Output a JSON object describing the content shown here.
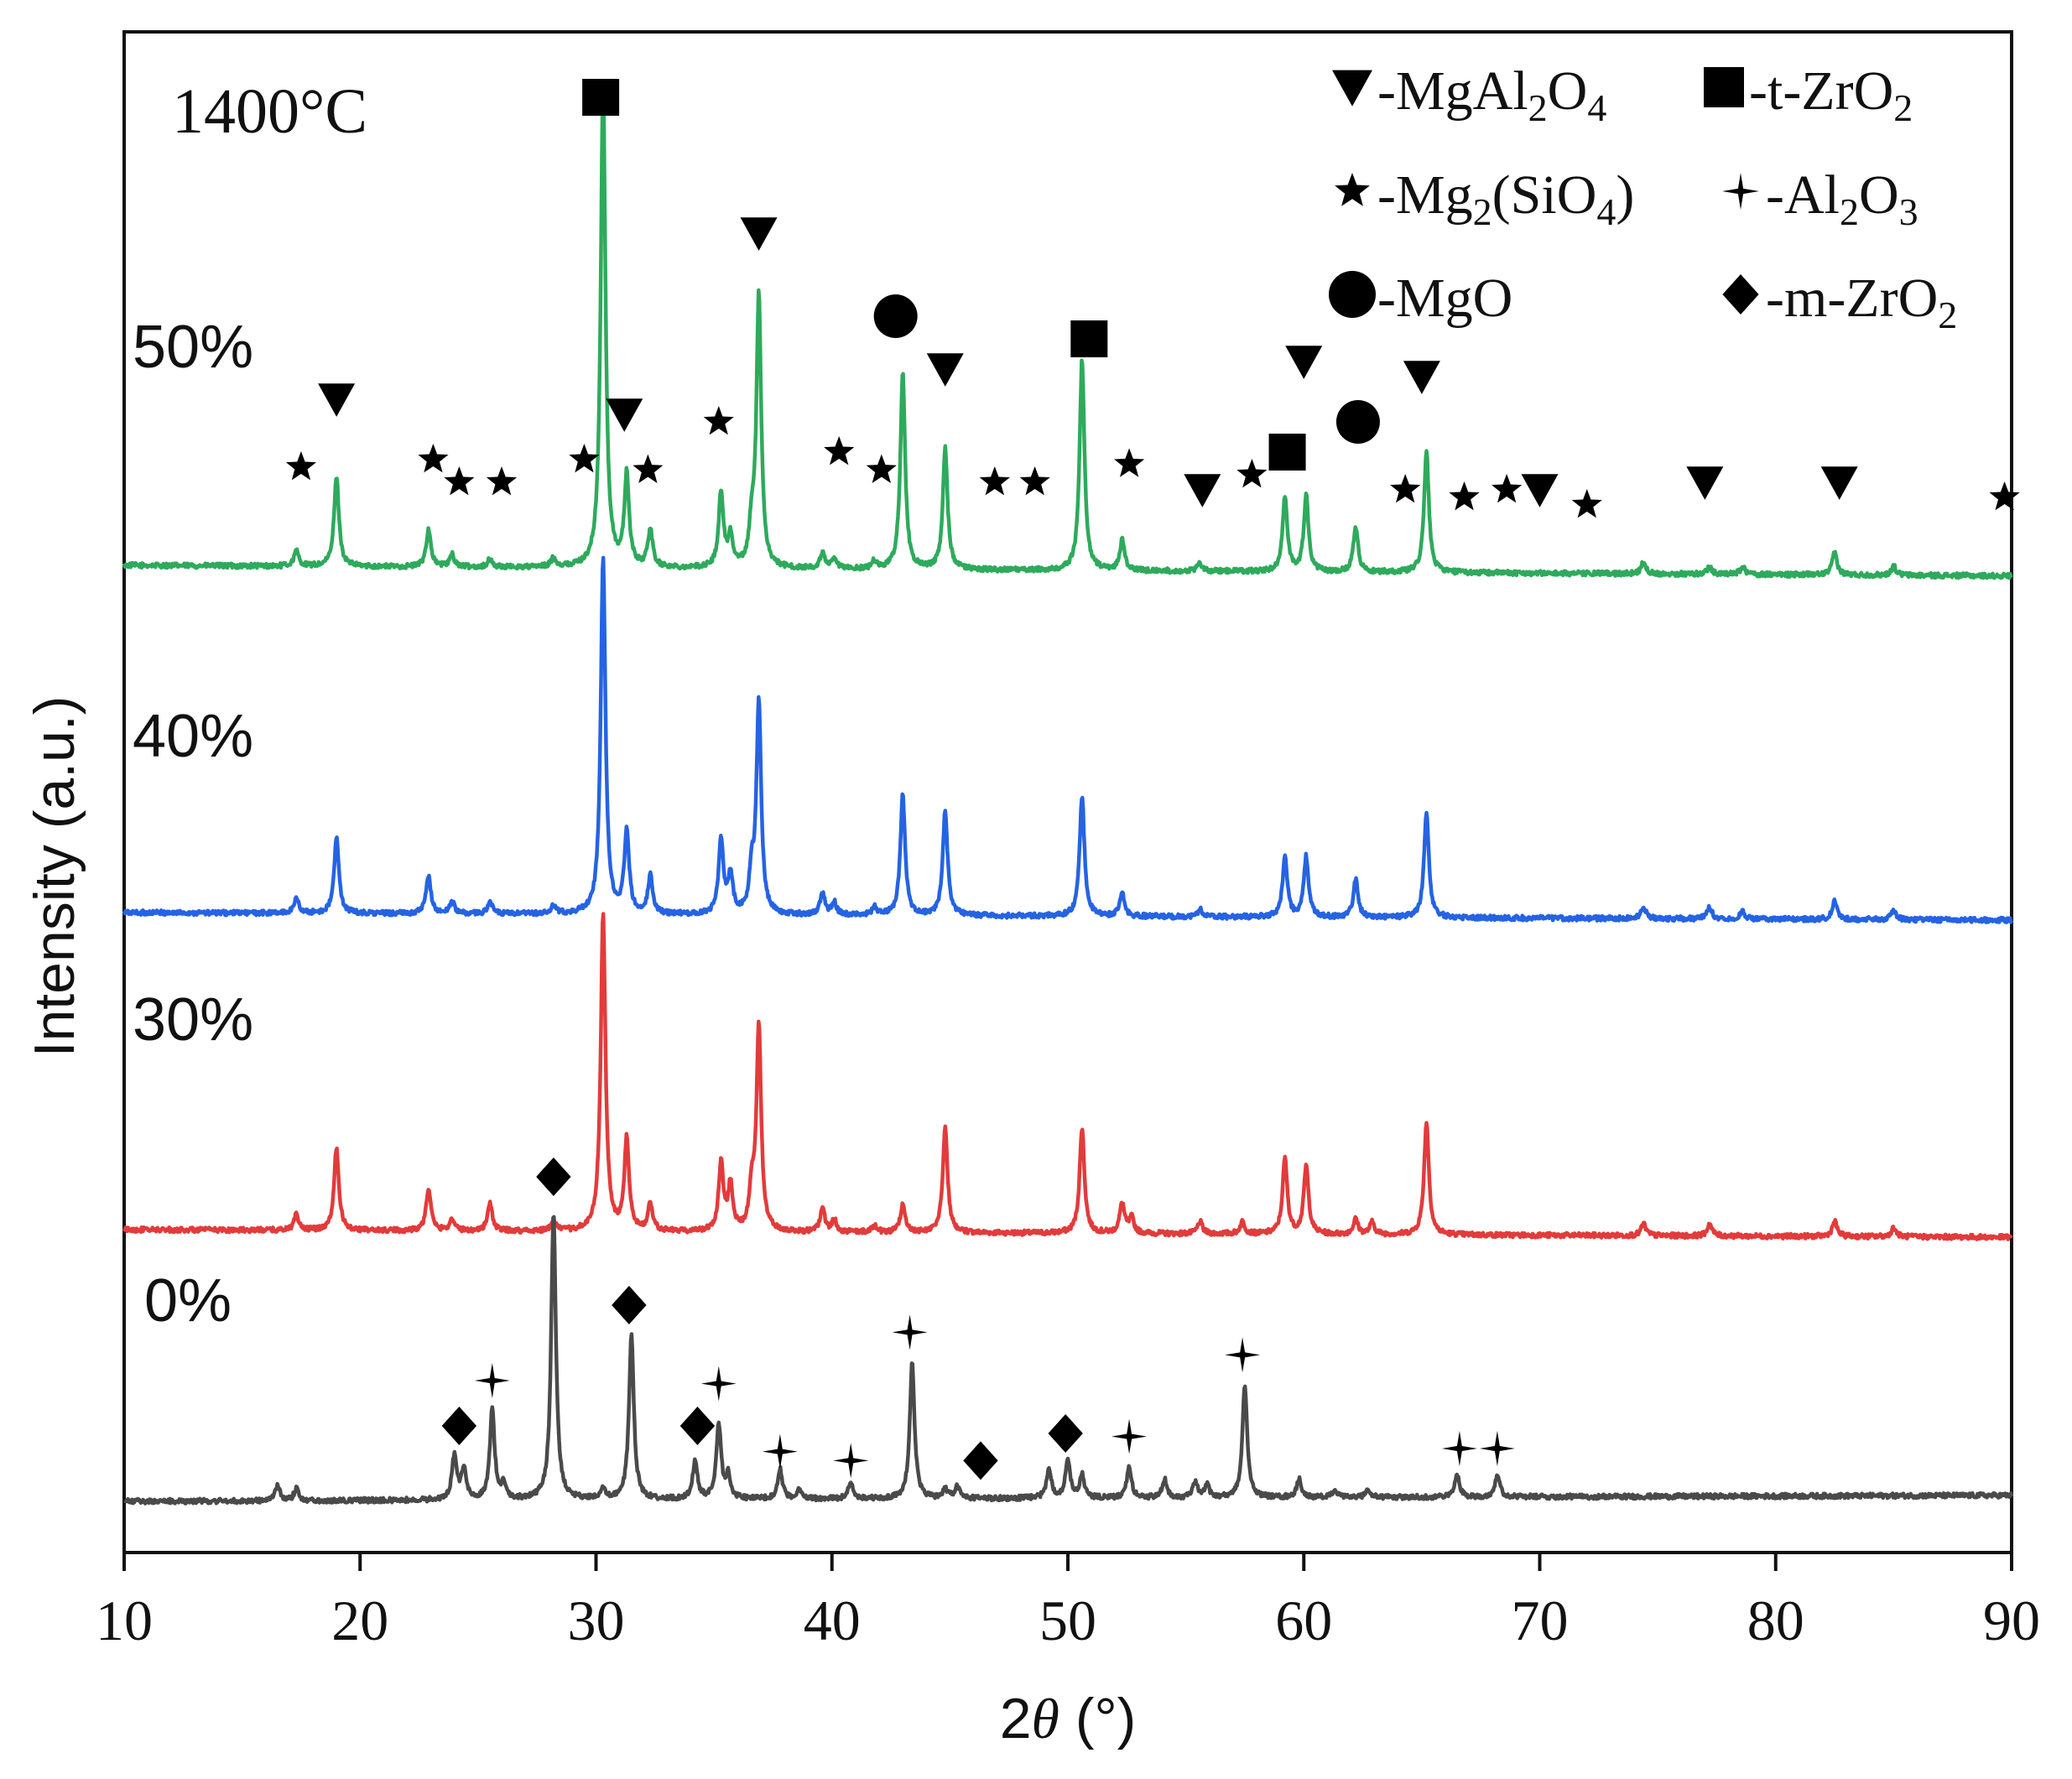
{
  "chart_data": {
    "type": "line",
    "title": "1400°C",
    "xlabel": "2θ (°)",
    "xlabel_parts": [
      "2",
      "θ",
      " (°)"
    ],
    "ylabel": "Intensity (a.u.)",
    "xlim": [
      10,
      90
    ],
    "x_ticks": [
      10,
      20,
      30,
      40,
      50,
      60,
      70,
      80,
      90
    ],
    "x_tick_labels": [
      "10",
      "20",
      "30",
      "40",
      "50",
      "60",
      "70",
      "80",
      "90"
    ],
    "grid": false,
    "legend_position": "top-right",
    "legend": [
      {
        "marker": "triangle-down",
        "label": "MgAl2O4",
        "parts": [
          [
            "-MgAl",
            ""
          ],
          [
            "2",
            "sub"
          ],
          [
            "O",
            ""
          ],
          [
            "4",
            "sub"
          ]
        ]
      },
      {
        "marker": "square",
        "label": "t-ZrO2",
        "parts": [
          [
            "-t-ZrO",
            ""
          ],
          [
            "2",
            "sub"
          ]
        ]
      },
      {
        "marker": "star",
        "label": "Mg2(SiO4)",
        "parts": [
          [
            "-Mg",
            ""
          ],
          [
            "2",
            "sub"
          ],
          [
            "(SiO",
            ""
          ],
          [
            "4",
            "sub"
          ],
          [
            ")",
            ""
          ]
        ]
      },
      {
        "marker": "sparkle",
        "label": "Al2O3",
        "parts": [
          [
            "-Al",
            ""
          ],
          [
            "2",
            "sub"
          ],
          [
            "O",
            ""
          ],
          [
            "3",
            "sub"
          ]
        ]
      },
      {
        "marker": "circle",
        "label": "MgO",
        "parts": [
          [
            "-MgO",
            ""
          ]
        ]
      },
      {
        "marker": "diamond",
        "label": "m-ZrO2",
        "parts": [
          [
            "-m-ZrO",
            ""
          ],
          [
            "2",
            "sub"
          ]
        ]
      }
    ],
    "series": [
      {
        "name": "50%",
        "label": "50%",
        "color": "#2eaa5c",
        "offset": 0.62,
        "peaks": [
          [
            17.3,
            0.01
          ],
          [
            19.0,
            0.06
          ],
          [
            22.9,
            0.025
          ],
          [
            23.9,
            0.008
          ],
          [
            25.5,
            0.005
          ],
          [
            28.2,
            0.006
          ],
          [
            30.3,
            0.32
          ],
          [
            31.3,
            0.06
          ],
          [
            32.3,
            0.025
          ],
          [
            35.3,
            0.05
          ],
          [
            35.7,
            0.02
          ],
          [
            36.6,
            0.025
          ],
          [
            36.9,
            0.18
          ],
          [
            39.6,
            0.01
          ],
          [
            40.1,
            0.006
          ],
          [
            41.8,
            0.005
          ],
          [
            43.0,
            0.13
          ],
          [
            44.8,
            0.08
          ],
          [
            50.6,
            0.14
          ],
          [
            52.3,
            0.02
          ],
          [
            55.6,
            0.005
          ],
          [
            59.2,
            0.05
          ],
          [
            60.1,
            0.05
          ],
          [
            62.2,
            0.03
          ],
          [
            65.2,
            0.08
          ],
          [
            74.4,
            0.008
          ],
          [
            77.2,
            0.005
          ],
          [
            78.6,
            0.005
          ],
          [
            82.5,
            0.015
          ],
          [
            85.0,
            0.006
          ]
        ],
        "markers": [
          {
            "type": "star",
            "x": 17.5,
            "y": 0.685
          },
          {
            "type": "triangle-down",
            "x": 19.0,
            "y": 0.73
          },
          {
            "type": "star",
            "x": 23.1,
            "y": 0.69
          },
          {
            "type": "star",
            "x": 24.2,
            "y": 0.675
          },
          {
            "type": "star",
            "x": 26.0,
            "y": 0.675
          },
          {
            "type": "star",
            "x": 29.5,
            "y": 0.69
          },
          {
            "type": "square",
            "x": 30.2,
            "y": 0.93
          },
          {
            "type": "triangle-down",
            "x": 31.2,
            "y": 0.72
          },
          {
            "type": "star",
            "x": 32.2,
            "y": 0.683
          },
          {
            "type": "star",
            "x": 35.2,
            "y": 0.715
          },
          {
            "type": "triangle-down",
            "x": 36.9,
            "y": 0.84
          },
          {
            "type": "star",
            "x": 40.3,
            "y": 0.695
          },
          {
            "type": "star",
            "x": 42.1,
            "y": 0.683
          },
          {
            "type": "circle",
            "x": 42.7,
            "y": 0.785
          },
          {
            "type": "triangle-down",
            "x": 44.8,
            "y": 0.75
          },
          {
            "type": "star",
            "x": 46.9,
            "y": 0.675
          },
          {
            "type": "star",
            "x": 48.6,
            "y": 0.675
          },
          {
            "type": "square",
            "x": 50.9,
            "y": 0.77
          },
          {
            "type": "star",
            "x": 52.6,
            "y": 0.687
          },
          {
            "type": "triangle-down",
            "x": 55.7,
            "y": 0.67
          },
          {
            "type": "star",
            "x": 57.8,
            "y": 0.68
          },
          {
            "type": "square",
            "x": 59.3,
            "y": 0.695
          },
          {
            "type": "triangle-down",
            "x": 60.0,
            "y": 0.755
          },
          {
            "type": "circle",
            "x": 62.3,
            "y": 0.715
          },
          {
            "type": "star",
            "x": 64.3,
            "y": 0.67
          },
          {
            "type": "triangle-down",
            "x": 65.0,
            "y": 0.745
          },
          {
            "type": "star",
            "x": 66.8,
            "y": 0.665
          },
          {
            "type": "star",
            "x": 68.6,
            "y": 0.67
          },
          {
            "type": "triangle-down",
            "x": 70.0,
            "y": 0.67
          },
          {
            "type": "star",
            "x": 72.0,
            "y": 0.66
          },
          {
            "type": "triangle-down",
            "x": 77.0,
            "y": 0.675
          },
          {
            "type": "triangle-down",
            "x": 82.7,
            "y": 0.675
          },
          {
            "type": "star",
            "x": 89.7,
            "y": 0.665
          }
        ]
      },
      {
        "name": "40%",
        "label": "40%",
        "color": "#2563e3",
        "offset": 0.39,
        "peaks": [
          [
            17.3,
            0.01
          ],
          [
            19.0,
            0.05
          ],
          [
            22.9,
            0.025
          ],
          [
            23.9,
            0.008
          ],
          [
            25.5,
            0.008
          ],
          [
            28.2,
            0.005
          ],
          [
            30.3,
            0.235
          ],
          [
            31.3,
            0.055
          ],
          [
            32.3,
            0.025
          ],
          [
            35.3,
            0.05
          ],
          [
            35.7,
            0.025
          ],
          [
            36.6,
            0.025
          ],
          [
            36.9,
            0.14
          ],
          [
            39.6,
            0.015
          ],
          [
            40.1,
            0.008
          ],
          [
            41.8,
            0.005
          ],
          [
            43.0,
            0.08
          ],
          [
            44.8,
            0.07
          ],
          [
            50.6,
            0.08
          ],
          [
            52.3,
            0.015
          ],
          [
            55.6,
            0.005
          ],
          [
            59.2,
            0.04
          ],
          [
            60.1,
            0.04
          ],
          [
            62.2,
            0.025
          ],
          [
            65.2,
            0.07
          ],
          [
            74.4,
            0.008
          ],
          [
            77.2,
            0.008
          ],
          [
            78.6,
            0.005
          ],
          [
            82.5,
            0.012
          ],
          [
            85.0,
            0.006
          ]
        ],
        "markers": []
      },
      {
        "name": "30%",
        "label": "30%",
        "color": "#e23b3b",
        "offset": 0.18,
        "peaks": [
          [
            17.3,
            0.01
          ],
          [
            19.0,
            0.055
          ],
          [
            22.9,
            0.028
          ],
          [
            23.9,
            0.008
          ],
          [
            25.5,
            0.018
          ],
          [
            28.2,
            0.006
          ],
          [
            30.3,
            0.21
          ],
          [
            31.3,
            0.06
          ],
          [
            32.3,
            0.018
          ],
          [
            35.3,
            0.045
          ],
          [
            35.7,
            0.03
          ],
          [
            36.6,
            0.025
          ],
          [
            36.9,
            0.135
          ],
          [
            39.6,
            0.015
          ],
          [
            40.1,
            0.008
          ],
          [
            41.8,
            0.005
          ],
          [
            43.0,
            0.018
          ],
          [
            44.8,
            0.07
          ],
          [
            50.6,
            0.07
          ],
          [
            52.3,
            0.02
          ],
          [
            52.7,
            0.01
          ],
          [
            55.6,
            0.008
          ],
          [
            57.4,
            0.008
          ],
          [
            59.2,
            0.05
          ],
          [
            60.1,
            0.045
          ],
          [
            62.2,
            0.01
          ],
          [
            62.9,
            0.008
          ],
          [
            65.2,
            0.075
          ],
          [
            74.4,
            0.008
          ],
          [
            77.2,
            0.008
          ],
          [
            82.5,
            0.01
          ],
          [
            85.0,
            0.006
          ]
        ],
        "markers": []
      },
      {
        "name": "0%",
        "label": "0%",
        "color": "#4a4a4a",
        "offset": 0.0,
        "peaks": [
          [
            16.5,
            0.01
          ],
          [
            17.3,
            0.008
          ],
          [
            24.0,
            0.03
          ],
          [
            24.4,
            0.02
          ],
          [
            25.6,
            0.06
          ],
          [
            26.1,
            0.01
          ],
          [
            28.2,
            0.19
          ],
          [
            30.3,
            0.006
          ],
          [
            31.5,
            0.11
          ],
          [
            34.2,
            0.025
          ],
          [
            35.2,
            0.05
          ],
          [
            35.6,
            0.015
          ],
          [
            37.8,
            0.02
          ],
          [
            38.6,
            0.006
          ],
          [
            40.8,
            0.012
          ],
          [
            43.4,
            0.09
          ],
          [
            44.8,
            0.006
          ],
          [
            45.3,
            0.008
          ],
          [
            49.2,
            0.02
          ],
          [
            50.0,
            0.025
          ],
          [
            50.6,
            0.015
          ],
          [
            52.6,
            0.02
          ],
          [
            54.1,
            0.012
          ],
          [
            55.4,
            0.01
          ],
          [
            55.9,
            0.008
          ],
          [
            57.5,
            0.075
          ],
          [
            59.8,
            0.012
          ],
          [
            61.3,
            0.005
          ],
          [
            62.7,
            0.005
          ],
          [
            66.5,
            0.015
          ],
          [
            68.2,
            0.015
          ]
        ],
        "markers": [
          {
            "type": "diamond",
            "x": 24.2,
            "y": 0.05
          },
          {
            "type": "sparkle",
            "x": 25.6,
            "y": 0.08
          },
          {
            "type": "diamond",
            "x": 28.2,
            "y": 0.215
          },
          {
            "type": "diamond",
            "x": 31.4,
            "y": 0.13
          },
          {
            "type": "diamond",
            "x": 34.3,
            "y": 0.05
          },
          {
            "type": "sparkle",
            "x": 35.2,
            "y": 0.078
          },
          {
            "type": "sparkle",
            "x": 37.8,
            "y": 0.033
          },
          {
            "type": "sparkle",
            "x": 40.8,
            "y": 0.027
          },
          {
            "type": "sparkle",
            "x": 43.3,
            "y": 0.112
          },
          {
            "type": "diamond",
            "x": 46.3,
            "y": 0.027
          },
          {
            "type": "diamond",
            "x": 49.9,
            "y": 0.045
          },
          {
            "type": "sparkle",
            "x": 52.6,
            "y": 0.043
          },
          {
            "type": "sparkle",
            "x": 57.4,
            "y": 0.097
          },
          {
            "type": "sparkle",
            "x": 66.6,
            "y": 0.035
          },
          {
            "type": "sparkle",
            "x": 68.2,
            "y": 0.035
          }
        ]
      }
    ]
  }
}
